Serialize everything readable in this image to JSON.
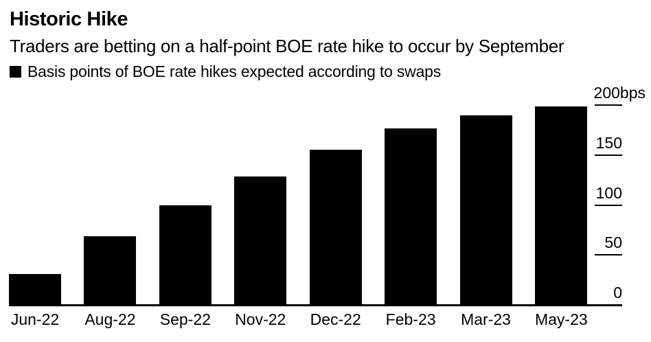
{
  "page": {
    "background": "#ffffff",
    "text_color": "#000000"
  },
  "header": {
    "title": "Historic Hike",
    "subtitle": "Traders are betting on a half-point BOE rate hike to occur by September",
    "legend": {
      "marker_color": "#000000",
      "label": "Basis points of BOE rate hikes expected according to swaps"
    }
  },
  "chart_data": {
    "type": "bar",
    "title": "Historic Hike",
    "subtitle": "Traders are betting on a half-point BOE rate hike to occur by September",
    "legend_entries": [
      "Basis points of BOE rate hikes expected according to swaps"
    ],
    "legend_position": "top-left",
    "categories": [
      "Jun-22",
      "Aug-22",
      "Sep-22",
      "Nov-22",
      "Dec-22",
      "Feb-23",
      "Mar-23",
      "May-23"
    ],
    "values": [
      30,
      68,
      99,
      128,
      155,
      176,
      189,
      198
    ],
    "unit": "bps",
    "xlabel": "",
    "ylabel": "",
    "ylim": [
      0,
      200
    ],
    "y_axis_side": "right",
    "grid": false,
    "bar_color": "#000000",
    "y_ticks": [
      {
        "value": 0,
        "label": "0"
      },
      {
        "value": 50,
        "label": "50"
      },
      {
        "value": 100,
        "label": "100"
      },
      {
        "value": 150,
        "label": "150"
      },
      {
        "value": 200,
        "label": "200bps"
      }
    ]
  }
}
